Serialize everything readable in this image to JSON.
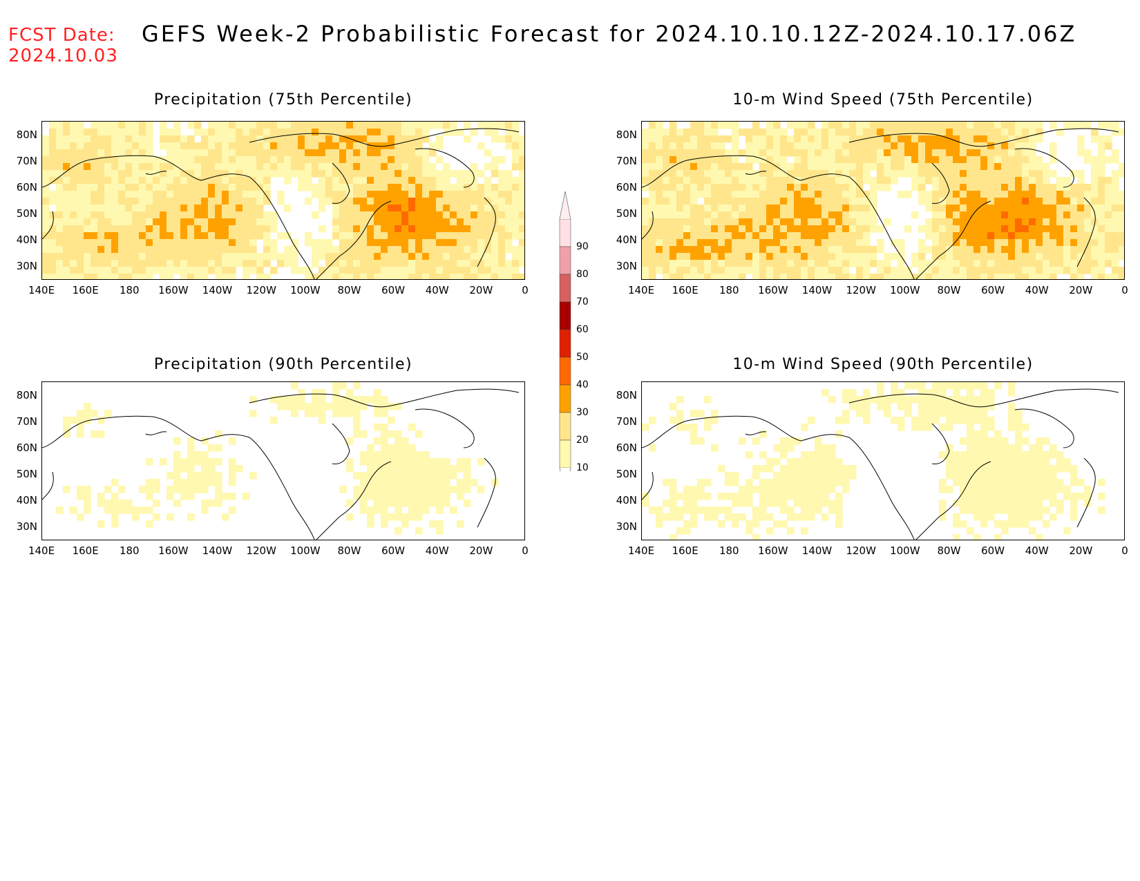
{
  "header": {
    "fcst_label": "FCST Date:",
    "fcst_date": "2024.10.03",
    "title": "GEFS Week-2 Probabilistic Forecast for 2024.10.10.12Z-2024.10.17.06Z"
  },
  "panels": [
    {
      "title": "Precipitation (75th Percentile)",
      "intensity": 1.0
    },
    {
      "title": "10-m Wind Speed (75th Percentile)",
      "intensity": 1.05
    },
    {
      "title": "Precipitation (90th Percentile)",
      "intensity": 0.35
    },
    {
      "title": "10-m Wind Speed (90th Percentile)",
      "intensity": 0.4
    }
  ],
  "lat_labels": [
    "80N",
    "70N",
    "60N",
    "50N",
    "40N",
    "30N"
  ],
  "lon_labels": [
    "140E",
    "160E",
    "180",
    "160W",
    "140W",
    "120W",
    "100W",
    "80W",
    "60W",
    "40W",
    "20W",
    "0"
  ],
  "colorbar": {
    "levels": [
      "10",
      "20",
      "30",
      "40",
      "50",
      "60",
      "70",
      "80",
      "90"
    ],
    "colors": [
      "#fff8b0",
      "#ffe68c",
      "#ffa200",
      "#ff6a00",
      "#e02000",
      "#a80000",
      "#d86060",
      "#f0a0a8",
      "#ffe0e4"
    ]
  }
}
